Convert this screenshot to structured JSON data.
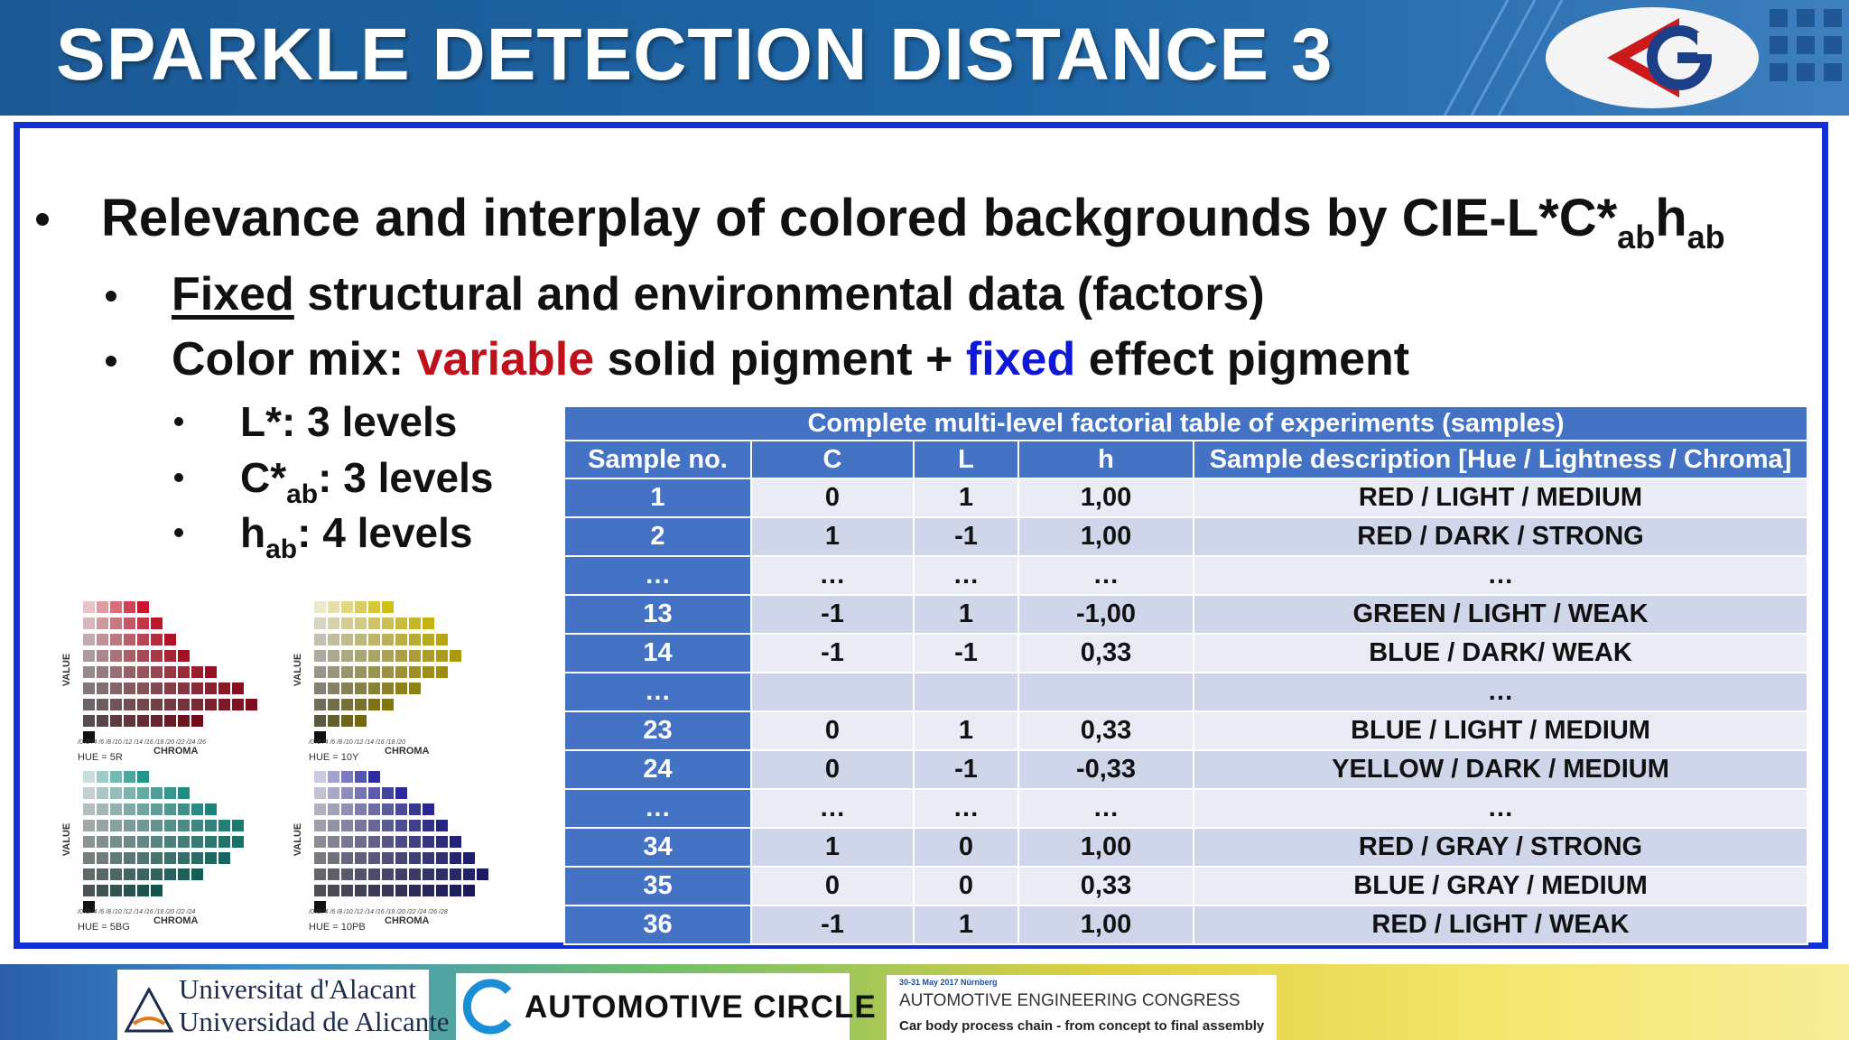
{
  "header": {
    "title": "SPARKLE DETECTION DISTANCE 3"
  },
  "bullets": {
    "main_pre": "Relevance and interplay of colored backgrounds by CIE-L*C*",
    "main_sub1": "ab",
    "main_h": "h",
    "main_sub2": "ab",
    "fixed_word": "Fixed",
    "fixed_rest": " structural and environmental data (factors)",
    "mix_pre": "Color mix: ",
    "mix_variable": "variable",
    "mix_mid": " solid pigment +  ",
    "mix_fixed": "fixed",
    "mix_post": " effect pigment",
    "levels": [
      {
        "sym": "L*",
        "sub": "",
        "text": ": 3 levels"
      },
      {
        "sym": "C*",
        "sub": "ab",
        "text": ": 3 levels"
      },
      {
        "sym": "h",
        "sub": "ab",
        "text": ": 4 levels"
      }
    ]
  },
  "munsell": [
    {
      "hue": "HUE = 5R",
      "axis": "VALUE",
      "chroma": "CHROMA",
      "ticks": "/0 /2 /4 /6 /8 /10 /12 /14 /16 /18 /20 /22 /24 /26",
      "hue_color": "#c0152a"
    },
    {
      "hue": "HUE = 10Y",
      "axis": "VALUE",
      "chroma": "CHROMA",
      "ticks": "/0 /2 /4 /6 /8 /10 /12 /14 /16 /18 /20",
      "hue_color": "#c8b412"
    },
    {
      "hue": "HUE = 5BG",
      "axis": "VALUE",
      "chroma": "CHROMA",
      "ticks": "/0 /2 /4 /6 /8 /10 /12 /14 /16 /18 /20 /22 /24",
      "hue_color": "#1f8f86"
    },
    {
      "hue": "HUE = 10PB",
      "axis": "VALUE",
      "chroma": "CHROMA",
      "ticks": "/0 /2 /4 /6 /8 /10 /12 /14 /16 /18 /20 /22 /24 /26 /28",
      "hue_color": "#2a2a9a"
    }
  ],
  "table": {
    "caption": "Complete multi-level factorial table of experiments (samples)",
    "headers": [
      "Sample no.",
      "C",
      "L",
      "h",
      "Sample description [Hue / Lightness / Chroma]"
    ],
    "rows": [
      [
        "1",
        "0",
        "1",
        "1,00",
        "RED / LIGHT / MEDIUM"
      ],
      [
        "2",
        "1",
        "-1",
        "1,00",
        "RED / DARK / STRONG"
      ],
      [
        "…",
        "…",
        "…",
        "…",
        "…"
      ],
      [
        "13",
        "-1",
        "1",
        "-1,00",
        "GREEN / LIGHT / WEAK"
      ],
      [
        "14",
        "-1",
        "-1",
        "0,33",
        "BLUE / DARK/ WEAK"
      ],
      [
        "…",
        "",
        "",
        "",
        "…"
      ],
      [
        "23",
        "0",
        "1",
        "0,33",
        "BLUE / LIGHT / MEDIUM"
      ],
      [
        "24",
        "0",
        "-1",
        "-0,33",
        "YELLOW / DARK / MEDIUM"
      ],
      [
        "…",
        "…",
        "…",
        "…",
        "…"
      ],
      [
        "34",
        "1",
        "0",
        "1,00",
        "RED / GRAY / STRONG"
      ],
      [
        "35",
        "0",
        "0",
        "0,33",
        "BLUE / GRAY / MEDIUM"
      ],
      [
        "36",
        "-1",
        "1",
        "1,00",
        "RED / LIGHT / WEAK"
      ]
    ]
  },
  "footer": {
    "university_line1": "Universitat d'Alacant",
    "university_line2": "Universidad de Alicante",
    "automotive": "AUTOMOTIVE CIRCLE",
    "congress_date": "30-31 May 2017 Nürnberg",
    "congress_name": "AUTOMOTIVE ENGINEERING CONGRESS",
    "congress_sub": "Car body process chain - from concept to final assembly"
  }
}
